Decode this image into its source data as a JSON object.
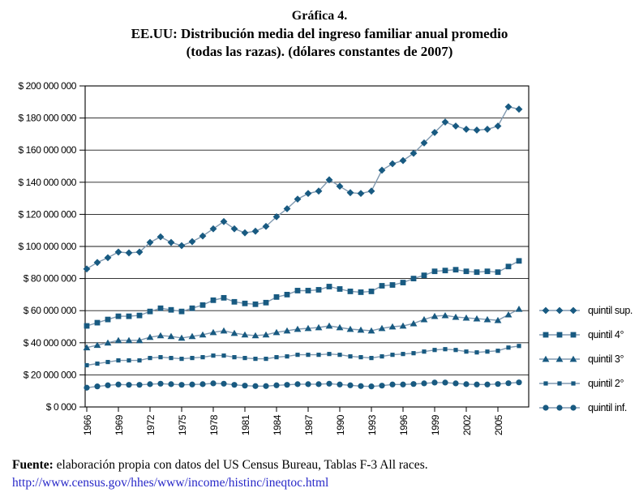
{
  "title": {
    "line1": "Gráfica 4.",
    "line2": "EE.UU: Distribución media del ingreso familiar anual promedio",
    "line3": "(todas las razas). (dólares constantes de 2007)"
  },
  "footer": {
    "source_label": "Fuente:",
    "source_text": " elaboración propia con datos del US Census Bureau, Tablas F-3 All races.",
    "link": "http://www.census.gov/hhes/www/income/histinc/ineqtoc.html"
  },
  "colors": {
    "marker": "#185A81",
    "line": "#8099B0",
    "grid": "#1a1a1a",
    "axis": "#000000",
    "link": "#2828C8",
    "text": "#000000"
  },
  "chart_data": {
    "type": "line",
    "title": "EE.UU: Distribución media del ingreso familiar anual promedio (todas las razas), dólares constantes de 2007",
    "xlabel": "",
    "ylabel": "",
    "values_unit": "millions of USD (constant 2007 dollars), as read from axis",
    "values_scale": 1000000,
    "ylim_millions": [
      0,
      200
    ],
    "y_tick_step_millions": 20,
    "grid": "horizontal",
    "legend_position": "right",
    "y_tick_labels": [
      "$ 200 000 000",
      "$ 180 000 000",
      "$ 160 000 000",
      "$ 140 000 000",
      "$ 120 000 000",
      "$ 100 000 000",
      "$ 80 000 000",
      "$ 60 000 000",
      "$ 40 000 000",
      "$ 20 000 000",
      "$ 0 000"
    ],
    "x_tick_years": [
      1966,
      1969,
      1972,
      1975,
      1978,
      1981,
      1984,
      1987,
      1990,
      1993,
      1996,
      1999,
      2002,
      2005
    ],
    "years": [
      1966,
      1967,
      1968,
      1969,
      1970,
      1971,
      1972,
      1973,
      1974,
      1975,
      1976,
      1977,
      1978,
      1979,
      1980,
      1981,
      1982,
      1983,
      1984,
      1985,
      1986,
      1987,
      1988,
      1989,
      1990,
      1991,
      1992,
      1993,
      1994,
      1995,
      1996,
      1997,
      1998,
      1999,
      2000,
      2001,
      2002,
      2003,
      2004,
      2005,
      2006,
      2007
    ],
    "series": [
      {
        "id": "quintil-sup",
        "name": "quintil sup.",
        "marker": "diamond",
        "values": [
          86,
          90,
          93,
          96.5,
          96,
          96.5,
          102.5,
          106,
          102.5,
          100.5,
          103,
          106.5,
          111,
          115.5,
          111,
          108.5,
          109.5,
          112.5,
          118.5,
          123.5,
          129.5,
          133,
          134.5,
          141.5,
          137.5,
          133.5,
          133,
          134.5,
          147.5,
          151.5,
          153.5,
          158,
          164.5,
          171,
          177.5,
          175,
          173,
          172.5,
          173,
          175,
          187,
          185.5
        ]
      },
      {
        "id": "quintil-4",
        "name": "quintil 4°",
        "marker": "square",
        "values": [
          50.5,
          52.5,
          54.5,
          56.5,
          56.5,
          57,
          59.5,
          61.5,
          60.5,
          59.5,
          61.5,
          63.5,
          66.5,
          68,
          65.5,
          64.5,
          64,
          65,
          68.5,
          70,
          72.5,
          72.5,
          73,
          75,
          73.5,
          72,
          71.5,
          72,
          75.5,
          76,
          77.5,
          80,
          82,
          84.5,
          85,
          85.5,
          84.5,
          84,
          84.5,
          84,
          87.5,
          91
        ]
      },
      {
        "id": "quintil-3",
        "name": "quintil 3°",
        "marker": "triangle",
        "values": [
          37,
          38.5,
          40,
          41.5,
          41.5,
          41.5,
          43.5,
          44.5,
          44,
          43,
          44,
          45,
          46.5,
          47.5,
          46,
          45,
          44.5,
          45,
          46.5,
          47.5,
          48.5,
          49,
          49.5,
          50.5,
          49.5,
          48.5,
          48,
          47.5,
          49,
          50,
          50.5,
          52,
          54.5,
          56.5,
          57,
          56,
          55.5,
          55,
          54.5,
          54,
          57.5,
          61
        ]
      },
      {
        "id": "quintil-2",
        "name": "quintil 2°",
        "marker": "square-small",
        "values": [
          26,
          27,
          28,
          29,
          29,
          29,
          30.5,
          31,
          30.5,
          30,
          30.5,
          31,
          32,
          32,
          31,
          30.5,
          30,
          30,
          31,
          31.5,
          32.5,
          32.5,
          32.5,
          33,
          32.5,
          31.5,
          31,
          30.5,
          31.5,
          32.5,
          33,
          33.5,
          34.5,
          35.5,
          36,
          35.5,
          34.5,
          34,
          34.5,
          35,
          37,
          38
        ]
      },
      {
        "id": "quintil-inf",
        "name": "quintil inf.",
        "marker": "circle",
        "values": [
          12,
          12.8,
          13.5,
          14,
          13.8,
          13.8,
          14.2,
          14.5,
          14.2,
          13.8,
          14,
          14.2,
          14.7,
          14.5,
          13.8,
          13.3,
          13,
          13,
          13.5,
          13.8,
          14.2,
          14.2,
          14.2,
          14.5,
          14,
          13.5,
          13,
          12.8,
          13.3,
          14,
          14,
          14.3,
          14.7,
          15.2,
          15.2,
          14.7,
          14.2,
          14,
          14,
          14.3,
          14.8,
          15.3
        ]
      }
    ]
  }
}
